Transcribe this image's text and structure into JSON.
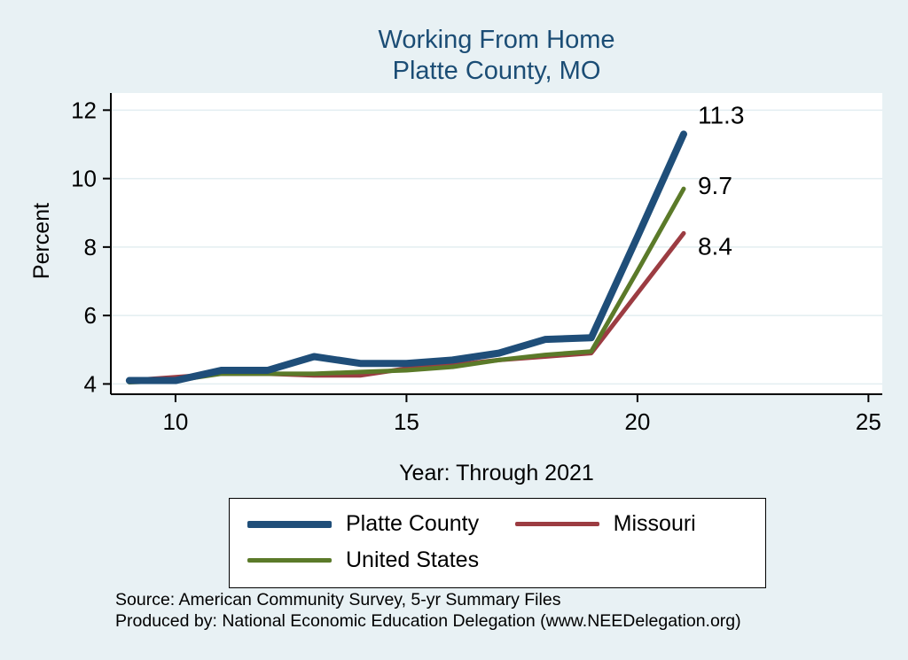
{
  "chart_data": {
    "type": "line",
    "title": "Working From Home Platte County, MO",
    "title_lines": [
      "Working From Home",
      "Platte County, MO"
    ],
    "xlabel": "Year: Through 2021",
    "ylabel": "Percent",
    "x": [
      9,
      10,
      11,
      12,
      13,
      14,
      15,
      16,
      17,
      18,
      19,
      20,
      21
    ],
    "series": [
      {
        "name": "Platte County",
        "color": "#1f4e79",
        "width": 8,
        "label_dy": -12,
        "values": [
          4.1,
          4.1,
          4.4,
          4.4,
          4.8,
          4.6,
          4.6,
          4.7,
          4.9,
          5.3,
          5.35,
          8.3,
          11.3
        ],
        "end_label": "11.3"
      },
      {
        "name": "Missouri",
        "color": "#9c3c42",
        "width": 5,
        "label_dy": 24,
        "values": [
          4.1,
          4.2,
          4.3,
          4.3,
          4.25,
          4.25,
          4.45,
          4.55,
          4.7,
          4.8,
          4.9,
          6.65,
          8.4
        ],
        "end_label": "8.4"
      },
      {
        "name": "United States",
        "color": "#5b7a29",
        "width": 5,
        "label_dy": 6,
        "values": [
          4.05,
          4.1,
          4.3,
          4.3,
          4.3,
          4.35,
          4.4,
          4.5,
          4.7,
          4.85,
          4.95,
          7.3,
          9.7
        ],
        "end_label": "9.7"
      }
    ],
    "xticks": [
      10,
      15,
      20,
      25
    ],
    "yticks": [
      4,
      6,
      8,
      10,
      12
    ],
    "xlim": [
      8.6,
      25.3
    ],
    "ylim": [
      3.7,
      12.5
    ],
    "grid": true,
    "legend_position": "bottom",
    "legend_order": [
      "Platte County",
      "Missouri",
      "United States"
    ],
    "colors": {
      "background": "#e8f1f4",
      "plot_bg": "#ffffff",
      "title": "#1b4d75",
      "axis": "#000000",
      "grid": "#e3eef1"
    }
  },
  "footer": {
    "source_line1": "Source: American Community Survey, 5-yr Summary Files",
    "source_line2": "Produced by: National Economic Education Delegation (www.NEEDelegation.org)"
  }
}
